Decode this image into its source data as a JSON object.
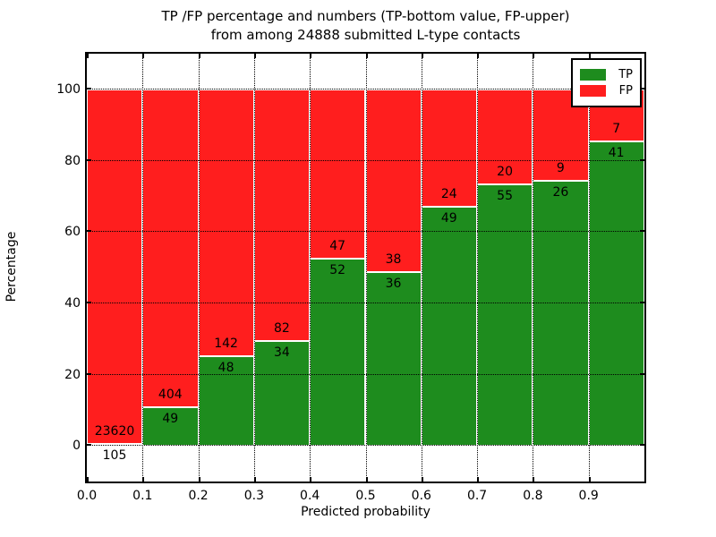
{
  "figure_title": {
    "line1": "TP /FP percentage and numbers (TP-bottom value, FP-upper)",
    "line2": "from among 24888 submitted L-type contacts"
  },
  "chart_data": {
    "type": "bar",
    "subtype": "stacked-percentage-histogram",
    "title": "TP /FP percentage and numbers (TP-bottom value, FP-upper) from among 24888 submitted L-type contacts",
    "bin_edges": [
      0.0,
      0.1,
      0.2,
      0.3,
      0.4,
      0.5,
      0.6,
      0.7,
      0.8,
      0.9,
      1.0
    ],
    "series": [
      {
        "name": "TP",
        "color": "#1e8c1e",
        "values": [
          105,
          49,
          48,
          34,
          52,
          36,
          49,
          55,
          26,
          41
        ]
      },
      {
        "name": "FP",
        "color": "#ff1e1e",
        "values": [
          23620,
          404,
          142,
          82,
          47,
          38,
          24,
          20,
          9,
          7
        ]
      }
    ],
    "xlabel": "Predicted probability",
    "ylabel": "Percentage",
    "x_tick_labels": [
      "0.0",
      "0.1",
      "0.2",
      "0.3",
      "0.4",
      "0.5",
      "0.6",
      "0.7",
      "0.8",
      "0.9"
    ],
    "y_ticks": [
      0,
      20,
      40,
      60,
      80,
      100
    ],
    "xlim": [
      0,
      1
    ],
    "ylim": [
      -10,
      110
    ],
    "grid": true,
    "legend": {
      "position": "upper right",
      "entries": [
        {
          "label": "TP",
          "color": "#1e8c1e"
        },
        {
          "label": "FP",
          "color": "#ff1e1e"
        }
      ]
    }
  }
}
